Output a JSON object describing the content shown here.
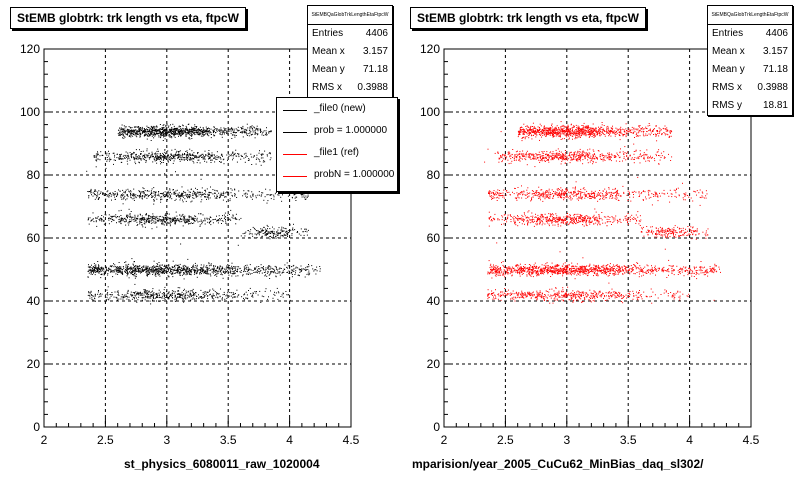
{
  "colors": {
    "background": "#ffffff",
    "axis": "#000000",
    "grid": "#000000",
    "file0": "#000000",
    "file1": "#ff0000"
  },
  "chart_data": [
    {
      "type": "scatter",
      "title": "StEMB globtrk: trk length vs eta, ftpcW",
      "xlabel": "st_physics_6080011_raw_1020004",
      "ylabel": "",
      "xlim": [
        2,
        4.5
      ],
      "ylim": [
        0,
        120
      ],
      "x_ticks": [
        "2",
        "2.5",
        "3",
        "3.5",
        "4",
        "4.5"
      ],
      "y_ticks": [
        "0",
        "20",
        "40",
        "60",
        "80",
        "100",
        "120"
      ],
      "grid": true,
      "marker_color": "#000000",
      "stats": {
        "name": "StEMBQaGlobTrkLengthEtaFtpcW",
        "rows": [
          {
            "label": "Entries",
            "value": "4406"
          },
          {
            "label": "Mean x",
            "value": "3.157"
          },
          {
            "label": "Mean y",
            "value": "71.18"
          },
          {
            "label": "RMS x",
            "value": "0.3988"
          }
        ]
      },
      "legend": {
        "position": "top-right",
        "items": [
          {
            "label": "_file0 (new)",
            "color": "#000000"
          },
          {
            "label": "prob = 1.000000",
            "color": "#000000"
          },
          {
            "label": "_file1 (ref)",
            "color": "#ff0000"
          },
          {
            "label": "probN = 1.000000",
            "color": "#ff0000"
          }
        ]
      },
      "bands": [
        {
          "y": 42,
          "x_min": 2.35,
          "x_max": 4.0,
          "x_center": 3.0,
          "count": 500
        },
        {
          "y": 50,
          "x_min": 2.35,
          "x_max": 4.25,
          "x_center": 2.95,
          "count": 1100
        },
        {
          "y": 62,
          "x_min": 3.6,
          "x_max": 4.15,
          "x_center": 3.85,
          "count": 180
        },
        {
          "y": 66,
          "x_min": 2.35,
          "x_max": 3.6,
          "x_center": 2.95,
          "count": 500
        },
        {
          "y": 74,
          "x_min": 2.35,
          "x_max": 4.15,
          "x_center": 3.0,
          "count": 550
        },
        {
          "y": 86,
          "x_min": 2.4,
          "x_max": 3.85,
          "x_center": 3.0,
          "count": 550
        },
        {
          "y": 94,
          "x_min": 2.6,
          "x_max": 3.85,
          "x_center": 3.0,
          "count": 950
        }
      ]
    },
    {
      "type": "scatter",
      "title": "StEMB globtrk: trk length vs eta, ftpcW",
      "xlabel": "mparision/year_2005_CuCu62_MinBias_daq_sl302/",
      "ylabel": "",
      "xlim": [
        2,
        4.5
      ],
      "ylim": [
        0,
        120
      ],
      "x_ticks": [
        "2",
        "2.5",
        "3",
        "3.5",
        "4",
        "4.5"
      ],
      "y_ticks": [
        "0",
        "20",
        "40",
        "60",
        "80",
        "100",
        "120"
      ],
      "grid": true,
      "marker_color": "#ff0000",
      "stats": {
        "name": "StEMBQaGlobTrkLengthEtaFtpcW",
        "rows": [
          {
            "label": "Entries",
            "value": "4406"
          },
          {
            "label": "Mean x",
            "value": "3.157"
          },
          {
            "label": "Mean y",
            "value": "71.18"
          },
          {
            "label": "RMS x",
            "value": "0.3988"
          },
          {
            "label": "RMS y",
            "value": "18.81"
          }
        ]
      },
      "bands": [
        {
          "y": 42,
          "x_min": 2.35,
          "x_max": 4.0,
          "x_center": 3.0,
          "count": 500
        },
        {
          "y": 50,
          "x_min": 2.35,
          "x_max": 4.25,
          "x_center": 2.95,
          "count": 1100
        },
        {
          "y": 62,
          "x_min": 3.6,
          "x_max": 4.15,
          "x_center": 3.85,
          "count": 180
        },
        {
          "y": 66,
          "x_min": 2.35,
          "x_max": 3.6,
          "x_center": 2.95,
          "count": 500
        },
        {
          "y": 74,
          "x_min": 2.35,
          "x_max": 4.15,
          "x_center": 3.0,
          "count": 550
        },
        {
          "y": 86,
          "x_min": 2.4,
          "x_max": 3.85,
          "x_center": 3.0,
          "count": 550
        },
        {
          "y": 94,
          "x_min": 2.6,
          "x_max": 3.85,
          "x_center": 3.0,
          "count": 950
        }
      ]
    }
  ]
}
